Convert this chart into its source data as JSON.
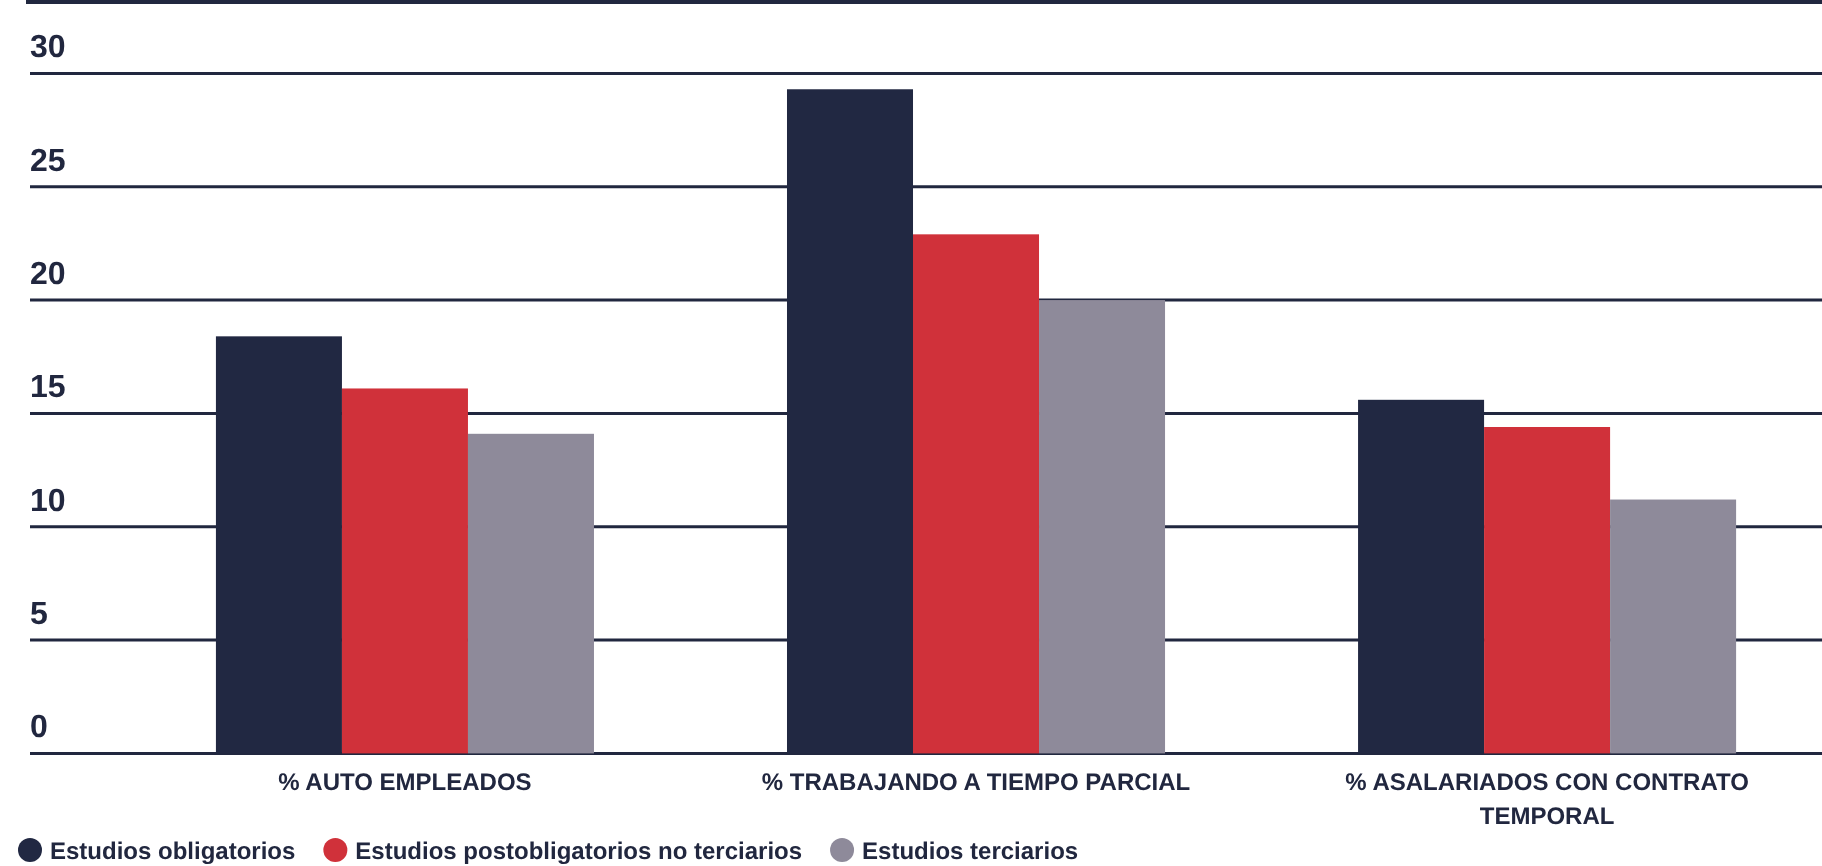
{
  "chart_data": {
    "type": "bar",
    "categories": [
      "% AUTO EMPLEADOS",
      "% TRABAJANDO A TIEMPO PARCIAL",
      "% ASALARIADOS CON CONTRATO TEMPORAL"
    ],
    "series": [
      {
        "name": "Estudios obligatorios",
        "color": "#212842",
        "values": [
          18.4,
          29.3,
          15.6
        ]
      },
      {
        "name": "Estudios postobligatorios no terciarios",
        "color": "#d0313a",
        "values": [
          16.1,
          22.9,
          14.4
        ]
      },
      {
        "name": "Estudios terciarios",
        "color": "#8e8a9a",
        "values": [
          14.1,
          20.0,
          11.2
        ]
      }
    ],
    "ylim": [
      0,
      30
    ],
    "yticks": [
      0,
      5,
      10,
      15,
      20,
      25,
      30
    ],
    "grid": "y",
    "legend": "bottom"
  }
}
